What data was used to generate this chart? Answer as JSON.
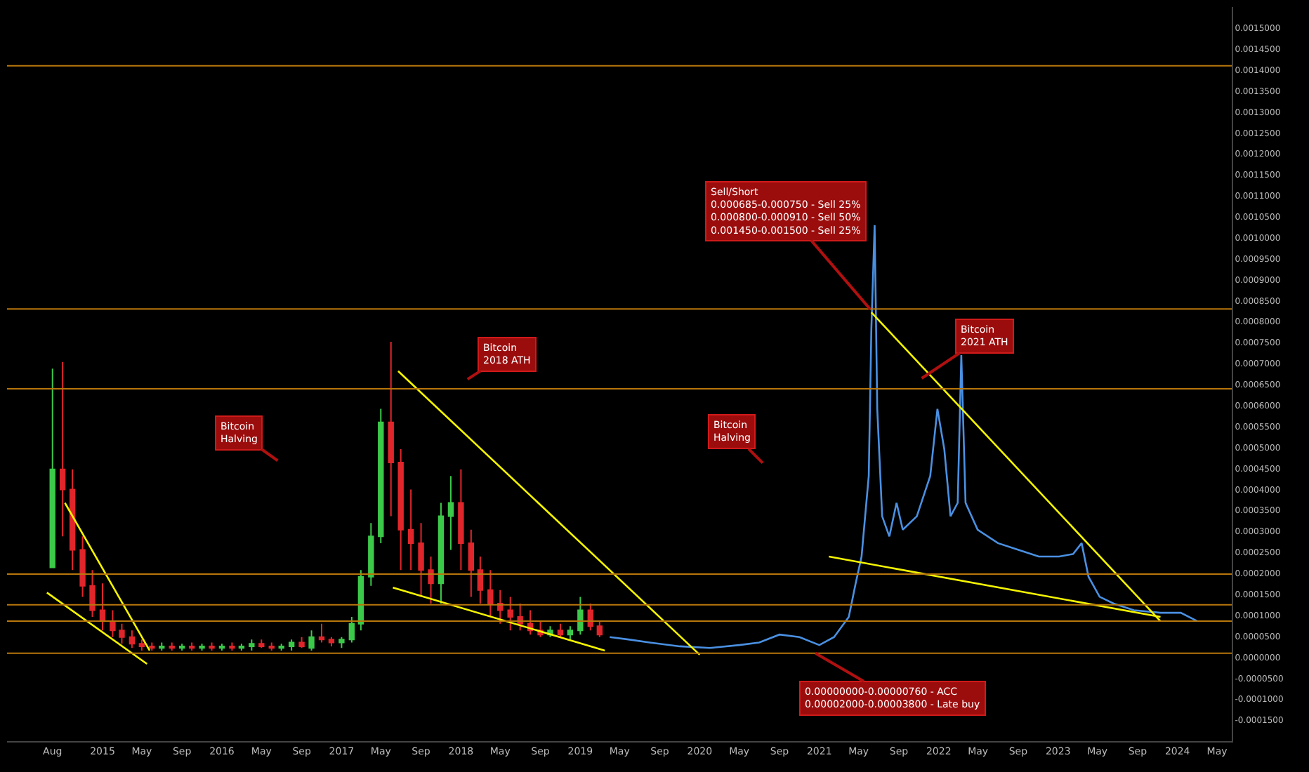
{
  "chart_data": {
    "type": "line",
    "xlim": [
      "2014-03-15",
      "2024-06-15"
    ],
    "xticks": [
      {
        "value": "2014-08-01",
        "label": "Aug"
      },
      {
        "value": "2015-01-01",
        "label": "2015"
      },
      {
        "value": "2015-05-01",
        "label": "May"
      },
      {
        "value": "2015-09-01",
        "label": "Sep"
      },
      {
        "value": "2016-01-01",
        "label": "2016"
      },
      {
        "value": "2016-05-01",
        "label": "May"
      },
      {
        "value": "2016-09-01",
        "label": "Sep"
      },
      {
        "value": "2017-01-01",
        "label": "2017"
      },
      {
        "value": "2017-05-01",
        "label": "May"
      },
      {
        "value": "2017-09-01",
        "label": "Sep"
      },
      {
        "value": "2018-01-01",
        "label": "2018"
      },
      {
        "value": "2018-05-01",
        "label": "May"
      },
      {
        "value": "2018-09-01",
        "label": "Sep"
      },
      {
        "value": "2019-01-01",
        "label": "2019"
      },
      {
        "value": "2019-05-01",
        "label": "May"
      },
      {
        "value": "2019-09-01",
        "label": "Sep"
      },
      {
        "value": "2020-01-01",
        "label": "2020"
      },
      {
        "value": "2020-05-01",
        "label": "May"
      },
      {
        "value": "2020-09-01",
        "label": "Sep"
      },
      {
        "value": "2021-01-01",
        "label": "2021"
      },
      {
        "value": "2021-05-01",
        "label": "May"
      },
      {
        "value": "2021-09-01",
        "label": "Sep"
      },
      {
        "value": "2022-01-01",
        "label": "2022"
      },
      {
        "value": "2022-05-01",
        "label": "May"
      },
      {
        "value": "2022-09-01",
        "label": "Sep"
      },
      {
        "value": "2023-01-01",
        "label": "2023"
      },
      {
        "value": "2023-05-01",
        "label": "May"
      },
      {
        "value": "2023-09-01",
        "label": "Sep"
      },
      {
        "value": "2024-01-01",
        "label": "2024"
      },
      {
        "value": "2024-05-01",
        "label": "May"
      }
    ],
    "ylim": [
      -0.0002,
      0.00155
    ],
    "yticks": [
      {
        "value": -0.00015,
        "label": "-0.0001500"
      },
      {
        "value": -0.0001,
        "label": "-0.0001000"
      },
      {
        "value": -5e-05,
        "label": "-0.0000500"
      },
      {
        "value": 0,
        "label": "0.0000000"
      },
      {
        "value": 5e-05,
        "label": "0.0000500"
      },
      {
        "value": 0.0001,
        "label": "0.0001000"
      },
      {
        "value": 0.00015,
        "label": "0.0001500"
      },
      {
        "value": 0.0002,
        "label": "0.0002000"
      },
      {
        "value": 0.00025,
        "label": "0.0002500"
      },
      {
        "value": 0.0003,
        "label": "0.0003000"
      },
      {
        "value": 0.00035,
        "label": "0.0003500"
      },
      {
        "value": 0.0004,
        "label": "0.0004000"
      },
      {
        "value": 0.00045,
        "label": "0.0004500"
      },
      {
        "value": 0.0005,
        "label": "0.0005000"
      },
      {
        "value": 0.00055,
        "label": "0.0005500"
      },
      {
        "value": 0.0006,
        "label": "0.0006000"
      },
      {
        "value": 0.00065,
        "label": "0.0006500"
      },
      {
        "value": 0.0007,
        "label": "0.0007000"
      },
      {
        "value": 0.00075,
        "label": "0.0007500"
      },
      {
        "value": 0.0008,
        "label": "0.0008000"
      },
      {
        "value": 0.00085,
        "label": "0.0008500"
      },
      {
        "value": 0.0009,
        "label": "0.0009000"
      },
      {
        "value": 0.00095,
        "label": "0.0009500"
      },
      {
        "value": 0.001,
        "label": "0.0010000"
      },
      {
        "value": 0.00105,
        "label": "0.0010500"
      },
      {
        "value": 0.0011,
        "label": "0.0011000"
      },
      {
        "value": 0.00115,
        "label": "0.0011500"
      },
      {
        "value": 0.0012,
        "label": "0.0012000"
      },
      {
        "value": 0.00125,
        "label": "0.0012500"
      },
      {
        "value": 0.0013,
        "label": "0.0013000"
      },
      {
        "value": 0.00135,
        "label": "0.0013500"
      },
      {
        "value": 0.0014,
        "label": "0.0014000"
      },
      {
        "value": 0.00145,
        "label": "0.0014500"
      },
      {
        "value": 0.0015,
        "label": "0.0015000"
      }
    ],
    "grid": false,
    "series": [
      {
        "type": "candlestick",
        "x": [
          "2014-08",
          "2014-09",
          "2014-10",
          "2014-11",
          "2014-12",
          "2015-01",
          "2015-02",
          "2015-03",
          "2015-04",
          "2015-05",
          "2015-06",
          "2015-07",
          "2015-08",
          "2015-09",
          "2015-10",
          "2015-11",
          "2015-12",
          "2016-01",
          "2016-02",
          "2016-03",
          "2016-04",
          "2016-05",
          "2016-06",
          "2016-07",
          "2016-08",
          "2016-09",
          "2016-10",
          "2016-11",
          "2016-12",
          "2017-01",
          "2017-02",
          "2017-03",
          "2017-04",
          "2017-05",
          "2017-06",
          "2017-07",
          "2017-08",
          "2017-09",
          "2017-10",
          "2017-11",
          "2017-12",
          "2018-01",
          "2018-02",
          "2018-03",
          "2018-04",
          "2018-05",
          "2018-06",
          "2018-07",
          "2018-08",
          "2018-09",
          "2018-10",
          "2018-11",
          "2018-12",
          "2019-01",
          "2019-02",
          "2019-03"
        ],
        "ohlc": [
          [
            0.000214,
            0.000688,
            0.000214,
            0.000448
          ],
          [
            0.000448,
            0.000704,
            0.000288,
            0.0004
          ],
          [
            0.0004,
            0.000448,
            0.000208,
            0.000256
          ],
          [
            0.000256,
            0.000288,
            0.000144,
            0.00017
          ],
          [
            0.00017,
            0.000208,
            9.6e-05,
            0.000112
          ],
          [
            0.000112,
            0.000176,
            6.4e-05,
            8.6e-05
          ],
          [
            8.6e-05,
            0.000112,
            4.8e-05,
            6.4e-05
          ],
          [
            6.4e-05,
            8e-05,
            3.2e-05,
            4.8e-05
          ],
          [
            4.8e-05,
            6.4e-05,
            2.2e-05,
            3.2e-05
          ],
          [
            3.2e-05,
            4.2e-05,
            1.6e-05,
            2.6e-05
          ],
          [
            2.6e-05,
            3.5e-05,
            1.6e-05,
            2.2e-05
          ],
          [
            2.2e-05,
            3.5e-05,
            1.6e-05,
            2.6e-05
          ],
          [
            2.6e-05,
            3.5e-05,
            1.6e-05,
            2.2e-05
          ],
          [
            2.2e-05,
            3.2e-05,
            1.6e-05,
            2.6e-05
          ],
          [
            2.6e-05,
            3.5e-05,
            1.6e-05,
            2.2e-05
          ],
          [
            2.2e-05,
            3.2e-05,
            1.6e-05,
            2.6e-05
          ],
          [
            2.6e-05,
            3.5e-05,
            1.6e-05,
            2.2e-05
          ],
          [
            2.2e-05,
            3.2e-05,
            1.6e-05,
            2.6e-05
          ],
          [
            2.6e-05,
            3.5e-05,
            1.6e-05,
            2.2e-05
          ],
          [
            2.2e-05,
            3.2e-05,
            1.6e-05,
            2.6e-05
          ],
          [
            2.6e-05,
            4.2e-05,
            1.6e-05,
            3.2e-05
          ],
          [
            3.2e-05,
            4.2e-05,
            2.2e-05,
            2.6e-05
          ],
          [
            2.6e-05,
            3.5e-05,
            1.6e-05,
            2.2e-05
          ],
          [
            2.2e-05,
            3.2e-05,
            1.6e-05,
            2.6e-05
          ],
          [
            2.6e-05,
            4.2e-05,
            1.6e-05,
            3.5e-05
          ],
          [
            3.5e-05,
            4.8e-05,
            2.2e-05,
            2.6e-05
          ],
          [
            2.2e-05,
            6.4e-05,
            1.6e-05,
            4.8e-05
          ],
          [
            4.8e-05,
            8e-05,
            3.5e-05,
            4.2e-05
          ],
          [
            4.2e-05,
            4.8e-05,
            2.6e-05,
            3.5e-05
          ],
          [
            3.5e-05,
            4.8e-05,
            2.2e-05,
            4.2e-05
          ],
          [
            4.2e-05,
            9.6e-05,
            3.5e-05,
            8e-05
          ],
          [
            8e-05,
            0.000208,
            6.4e-05,
            0.000192
          ],
          [
            0.000192,
            0.00032,
            0.00017,
            0.000288
          ],
          [
            0.000288,
            0.000592,
            0.000272,
            0.00056
          ],
          [
            0.00056,
            0.000752,
            0.000336,
            0.000464
          ],
          [
            0.000464,
            0.000496,
            0.000208,
            0.000304
          ],
          [
            0.000304,
            0.0004,
            0.000208,
            0.000272
          ],
          [
            0.000272,
            0.00032,
            0.000144,
            0.000208
          ],
          [
            0.000208,
            0.00024,
            0.000128,
            0.000176
          ],
          [
            0.000176,
            0.000368,
            0.000128,
            0.000336
          ],
          [
            0.000336,
            0.000432,
            0.000256,
            0.000368
          ],
          [
            0.000368,
            0.000448,
            0.000208,
            0.000272
          ],
          [
            0.000272,
            0.000304,
            0.000144,
            0.000208
          ],
          [
            0.000208,
            0.00024,
            0.000128,
            0.00016
          ],
          [
            0.00016,
            0.000208,
            9.6e-05,
            0.000128
          ],
          [
            0.000128,
            0.00016,
            8e-05,
            0.000112
          ],
          [
            0.000112,
            0.000144,
            6.4e-05,
            9.6e-05
          ],
          [
            9.6e-05,
            0.000128,
            6.4e-05,
            8e-05
          ],
          [
            8e-05,
            0.000112,
            5.4e-05,
            6.4e-05
          ],
          [
            6.4e-05,
            8.6e-05,
            4.8e-05,
            5.4e-05
          ],
          [
            5.4e-05,
            7.4e-05,
            4.8e-05,
            6.4e-05
          ],
          [
            6.4e-05,
            8e-05,
            4.8e-05,
            5.4e-05
          ],
          [
            5.4e-05,
            7.4e-05,
            4.2e-05,
            6.4e-05
          ],
          [
            6.4e-05,
            0.000144,
            5.4e-05,
            0.000112
          ],
          [
            0.000112,
            0.000128,
            6.4e-05,
            7.4e-05
          ],
          [
            7.4e-05,
            8.6e-05,
            4.8e-05,
            5.4e-05
          ]
        ]
      },
      {
        "color": "#4a90e2",
        "x": [
          "2019-04-01",
          "2019-06-01",
          "2019-08-01",
          "2019-11-01",
          "2020-02-01",
          "2020-05-01",
          "2020-07-01",
          "2020-09-01",
          "2020-11-01",
          "2021-01-01",
          "2021-02-15",
          "2021-04-01",
          "2021-04-22",
          "2021-05-10",
          "2021-06-01",
          "2021-06-09",
          "2021-06-19",
          "2021-06-27",
          "2021-07-12",
          "2021-08-03",
          "2021-08-25",
          "2021-09-13",
          "2021-10-26",
          "2021-12-06",
          "2021-12-28",
          "2022-01-18",
          "2022-02-06",
          "2022-02-28",
          "2022-03-11",
          "2022-03-24",
          "2022-04-30",
          "2022-07-01",
          "2022-09-02",
          "2022-11-03",
          "2023-01-04",
          "2023-02-16",
          "2023-03-14",
          "2023-04-04",
          "2023-05-08",
          "2023-06-20",
          "2023-08-21",
          "2023-11-10",
          "2024-01-11",
          "2024-03-02"
        ],
        "values": [
          4.8e-05,
          4.2e-05,
          3.5e-05,
          2.6e-05,
          2.2e-05,
          2.9e-05,
          3.5e-05,
          5.4e-05,
          4.8e-05,
          2.9e-05,
          4.8e-05,
          9.6e-05,
          0.000176,
          0.00024,
          0.000432,
          0.000784,
          0.00103,
          0.000592,
          0.000336,
          0.000288,
          0.000368,
          0.000304,
          0.000336,
          0.000432,
          0.000592,
          0.000496,
          0.000336,
          0.000368,
          0.00072,
          0.000368,
          0.000304,
          0.000272,
          0.000256,
          0.00024,
          0.00024,
          0.000246,
          0.000272,
          0.000192,
          0.000144,
          0.000128,
          0.000112,
          0.000106,
          0.000106,
          8.6e-05
        ]
      },
      {
        "type": "line",
        "color": "#f5f500",
        "x": [
          "2014-07-15",
          "2015-05-17"
        ],
        "values": [
          0.000154,
          -1.6e-05
        ]
      },
      {
        "type": "line",
        "color": "#f5f500",
        "x": [
          "2014-09-08",
          "2015-05-25"
        ],
        "values": [
          0.000368,
          1.6e-05
        ]
      },
      {
        "type": "line",
        "color": "#f5f500",
        "x": [
          "2017-06-23",
          "2020-01-01"
        ],
        "values": [
          0.000682,
          6e-06
        ]
      },
      {
        "type": "line",
        "color": "#f5f500",
        "x": [
          "2017-06-07",
          "2019-03-17"
        ],
        "values": [
          0.000166,
          1.6e-05
        ]
      },
      {
        "type": "line",
        "color": "#f5f500",
        "x": [
          "2021-01-30",
          "2023-11-10"
        ],
        "values": [
          0.00024,
          9.6e-05
        ]
      },
      {
        "type": "line",
        "color": "#f5f500",
        "x": [
          "2021-06-09",
          "2023-11-10"
        ],
        "values": [
          0.000822,
          8.6e-05
        ]
      }
    ],
    "ref_lines": [
      {
        "axis": "y",
        "value": 0.00141,
        "color": "#b8770b"
      },
      {
        "axis": "y",
        "value": 0.00083,
        "color": "#b8770b"
      },
      {
        "axis": "y",
        "value": 0.00064,
        "color": "#b8770b"
      },
      {
        "axis": "y",
        "value": 0.000198,
        "color": "#b8770b"
      },
      {
        "axis": "y",
        "value": 0.000125,
        "color": "#b8770b"
      },
      {
        "axis": "y",
        "value": 8.6e-05,
        "color": "#b8770b"
      },
      {
        "axis": "y",
        "value": 9.6e-06,
        "color": "#b8770b"
      }
    ],
    "annotations": [
      "Bitcoin\nHalving",
      "Bitcoin\n2018 ATH",
      "Bitcoin\nHalving",
      {
        "text": "Sell/Short\n0.000685-0.000750 - Sell 25%\n0.000800-0.000910 - Sell 50%\n0.001450-0.001500 - Sell 25%",
        "x": "2021-06-05",
        "y": 0.00083
      },
      {
        "text": "Bitcoin\n2021 ATH",
        "x": "2021-11-10",
        "y": 0.000665
      },
      {
        "text": "0.00000000-0.00000760 - ACC\n0.00002000-0.00003800 - Late buy",
        "x": "2020-12-20",
        "y": 9.6e-06
      }
    ]
  }
}
